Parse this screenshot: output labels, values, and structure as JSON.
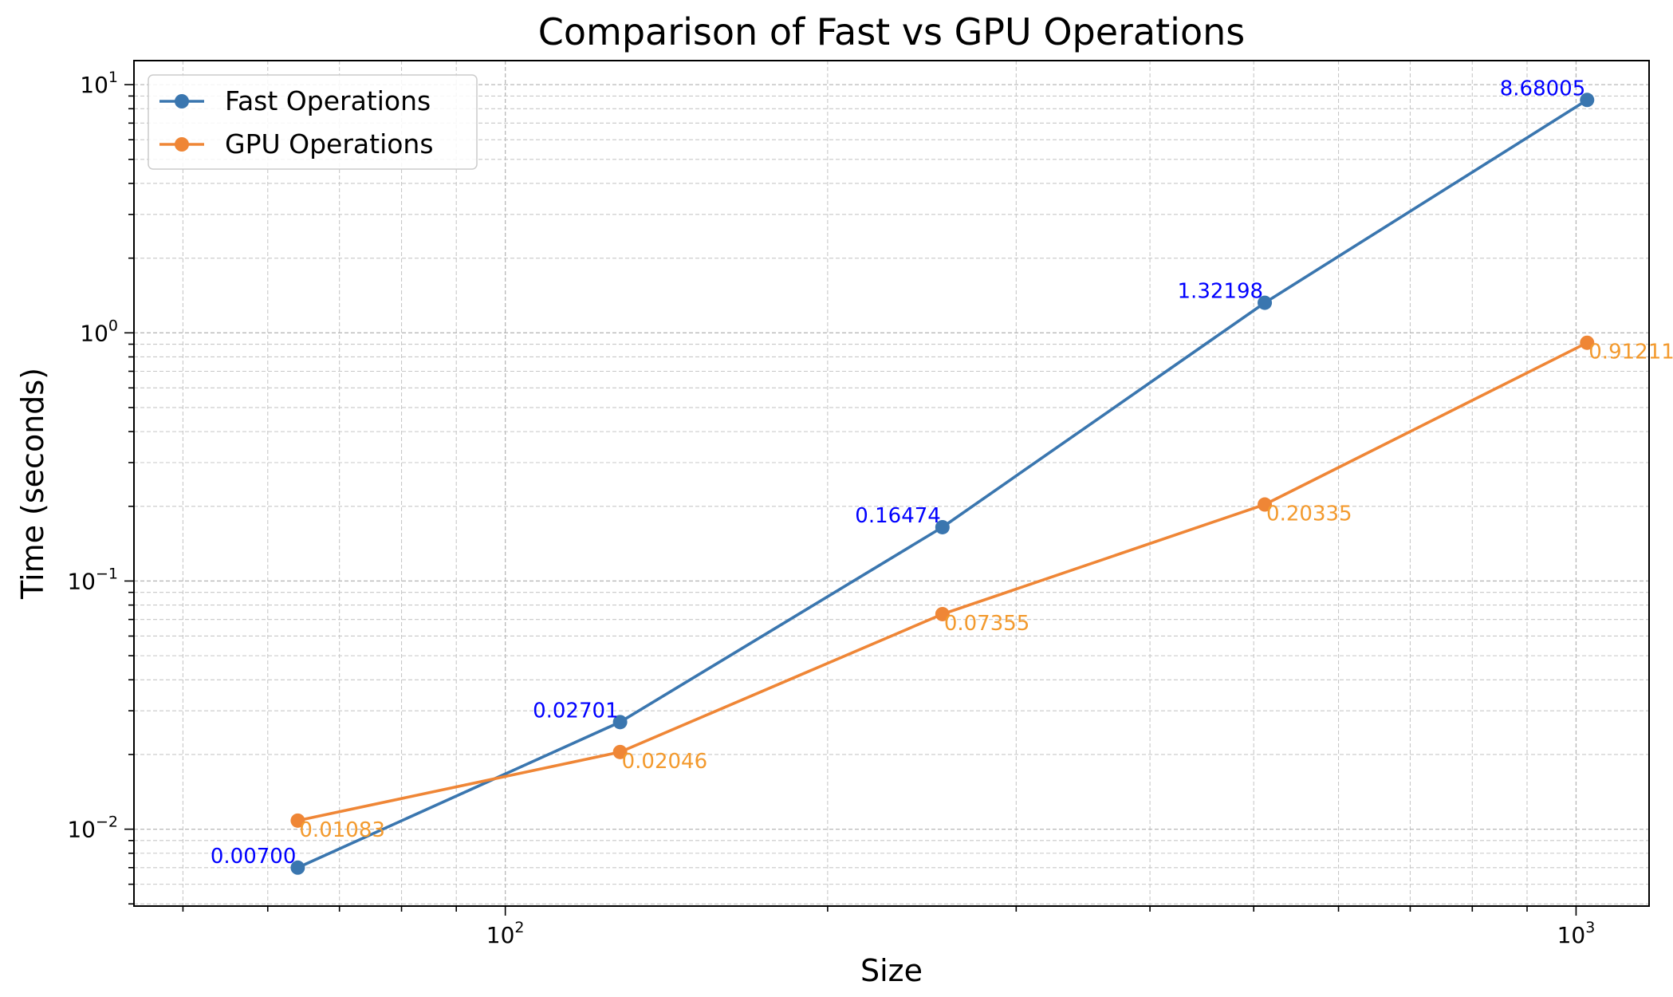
{
  "chart_data": {
    "type": "line",
    "title": "Comparison of Fast vs GPU Operations",
    "xlabel": "Size",
    "ylabel": "Time (seconds)",
    "xscale": "log",
    "yscale": "log",
    "xlim": [
      45,
      1170
    ],
    "ylim": [
      0.0049,
      12.5
    ],
    "x": [
      64,
      128,
      256,
      512,
      1024
    ],
    "x_ticks": [
      {
        "value": 100,
        "base": "10",
        "exp": "2"
      },
      {
        "value": 1000,
        "base": "10",
        "exp": "3"
      }
    ],
    "y_ticks": [
      {
        "value": 0.01,
        "base": "10",
        "exp": "−2"
      },
      {
        "value": 0.1,
        "base": "10",
        "exp": "−1"
      },
      {
        "value": 1,
        "base": "10",
        "exp": "0"
      },
      {
        "value": 10,
        "base": "10",
        "exp": "1"
      }
    ],
    "grid": "major and minor, dashed",
    "legend_position": "top-left",
    "series": [
      {
        "name": "Fast Operations",
        "color": "#3a76af",
        "label_color": "#0000ff",
        "label_side": "above-left",
        "values": [
          0.007,
          0.02701,
          0.16474,
          1.32198,
          8.68005
        ],
        "labels": [
          "0.00700",
          "0.02701",
          "0.16474",
          "1.32198",
          "8.68005"
        ]
      },
      {
        "name": "GPU Operations",
        "color": "#ef8636",
        "label_color": "#f39a2e",
        "label_side": "below-right",
        "values": [
          0.01083,
          0.02046,
          0.07355,
          0.20335,
          0.91211
        ],
        "labels": [
          "0.01083",
          "0.02046",
          "0.07355",
          "0.20335",
          "0.91211"
        ]
      }
    ]
  }
}
